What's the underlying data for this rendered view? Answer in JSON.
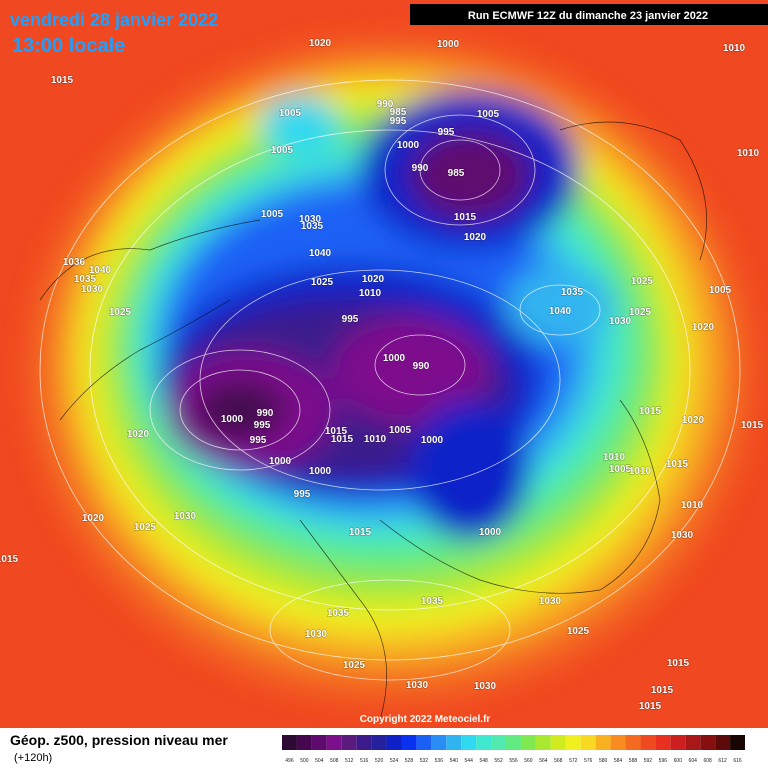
{
  "header": {
    "date": "vendredi 28 janvier 2022",
    "time": "13:00 locale",
    "run": "Run ECMWF 12Z du dimanche 23 janvier 2022"
  },
  "copyright": "Copyright 2022 Meteociel.fr",
  "legend": {
    "title": "Géop. z500, pression niveau mer",
    "lead": "(+120h)",
    "levels": [
      496,
      500,
      504,
      508,
      512,
      516,
      520,
      524,
      528,
      532,
      536,
      540,
      544,
      548,
      552,
      556,
      560,
      564,
      568,
      572,
      576,
      580,
      584,
      588,
      592,
      596,
      600,
      604,
      608,
      612,
      616
    ],
    "colors": [
      "#2d0a33",
      "#45084f",
      "#5e0a6e",
      "#7d0f8c",
      "#5b1a7e",
      "#3b1a8c",
      "#24209e",
      "#1020c8",
      "#0a30f0",
      "#1a60f5",
      "#2a8cf5",
      "#30b4f0",
      "#30d8f0",
      "#40e8d0",
      "#50eab0",
      "#60ea80",
      "#80e850",
      "#a8e830",
      "#d0ec20",
      "#f0f020",
      "#f8d820",
      "#f8b020",
      "#f88c20",
      "#f46a20",
      "#f04820",
      "#e83020",
      "#cc2020",
      "#a81818",
      "#861010",
      "#5e0a0a",
      "#1a0505"
    ]
  },
  "isobar_labels": [
    1020,
    1000,
    1015,
    1010,
    1005,
    1005,
    990,
    985,
    995,
    995,
    1000,
    1005,
    990,
    985,
    1010,
    1005,
    1030,
    1035,
    1015,
    1020,
    1040,
    1036,
    1040,
    1035,
    1030,
    1020,
    1025,
    1010,
    1035,
    1025,
    1005,
    995,
    1040,
    1030,
    1025,
    1020,
    1000,
    990,
    1025,
    990,
    1000,
    995,
    995,
    1015,
    1015,
    1010,
    1005,
    1000,
    1015,
    1020,
    1015,
    1020,
    1000,
    1000,
    1010,
    1005,
    1010,
    1015,
    995,
    1010,
    1030,
    1020,
    1025,
    1015,
    1000,
    1030,
    1015,
    1035,
    1030,
    1035,
    1025,
    1030,
    1025,
    1015,
    1030,
    1030,
    1015,
    1015
  ]
}
